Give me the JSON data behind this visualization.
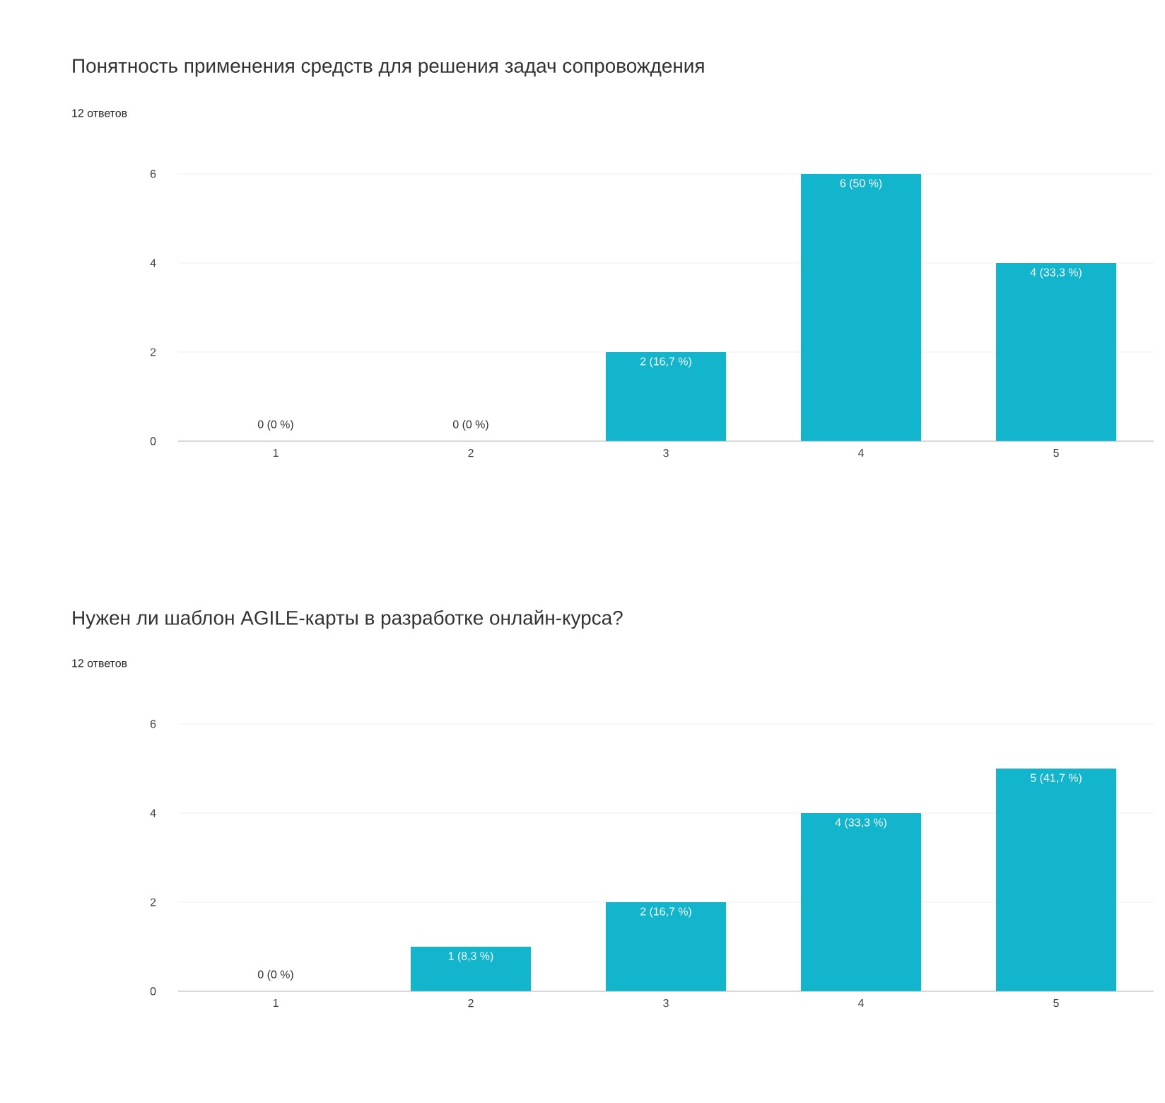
{
  "chart_data": [
    {
      "type": "bar",
      "title": "Понятность применения средств для решения задач сопровождения",
      "subtitle": "12 ответов",
      "categories": [
        "1",
        "2",
        "3",
        "4",
        "5"
      ],
      "values": [
        0,
        0,
        2,
        6,
        4
      ],
      "value_labels": [
        "0 (0 %)",
        "0 (0 %)",
        "2 (16,7 %)",
        "6 (50 %)",
        "4 (33,3 %)"
      ],
      "color": "#12b5cb",
      "ylim": [
        0,
        6
      ],
      "yticks": [
        0,
        2,
        4,
        6
      ],
      "grid": "y"
    },
    {
      "type": "bar",
      "title": "Нужен ли шаблон AGILE-карты в разработке онлайн-курса?",
      "subtitle": "12 ответов",
      "categories": [
        "1",
        "2",
        "3",
        "4",
        "5"
      ],
      "values": [
        0,
        1,
        2,
        4,
        5
      ],
      "value_labels": [
        "0 (0 %)",
        "1 (8,3 %)",
        "2 (16,7 %)",
        "4 (33,3 %)",
        "5 (41,7 %)"
      ],
      "color": "#12b5cb",
      "ylim": [
        0,
        6
      ],
      "yticks": [
        0,
        2,
        4,
        6
      ],
      "grid": "y"
    }
  ]
}
